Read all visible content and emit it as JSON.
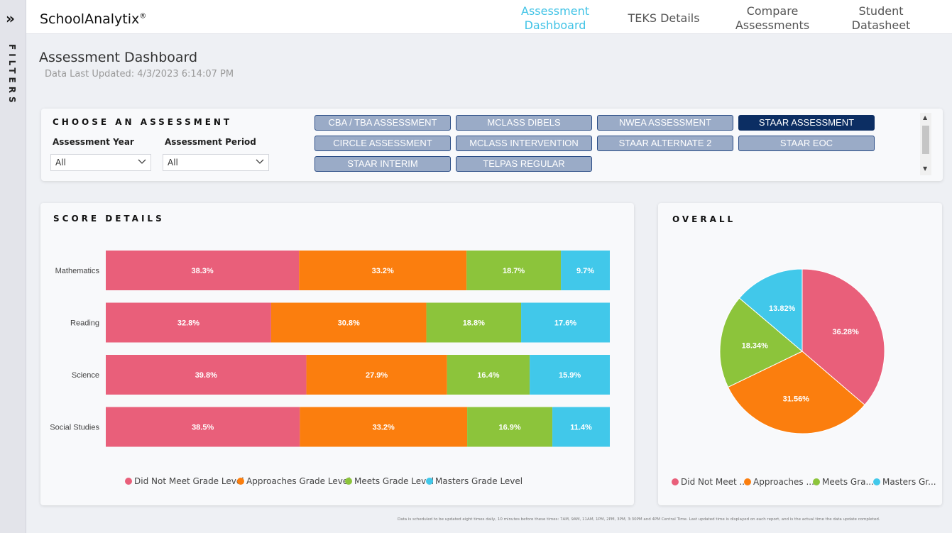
{
  "rail": {
    "toggle": "»",
    "label": "FILTERS"
  },
  "header": {
    "brand": "SchoolAnalytix",
    "brand_mark": "®",
    "nav": [
      {
        "line1": "Assessment",
        "line2": "Dashboard"
      },
      {
        "line1": "TEKS Details",
        "line2": ""
      },
      {
        "line1": "Compare",
        "line2": "Assessments"
      },
      {
        "line1": "Student",
        "line2": "Datasheet"
      }
    ],
    "active_nav": 0
  },
  "page": {
    "title": "Assessment Dashboard",
    "last_updated": "Data Last Updated: 4/3/2023 6:14:07 PM"
  },
  "choose": {
    "title": "CHOOSE AN ASSESSMENT",
    "year_label": "Assessment Year",
    "year_value": "All",
    "period_label": "Assessment Period",
    "period_value": "All",
    "assessments": [
      "CBA / TBA ASSESSMENT",
      "MCLASS DIBELS",
      "NWEA ASSESSMENT",
      "STAAR ASSESSMENT",
      "CIRCLE ASSESSMENT",
      "MCLASS INTERVENTION",
      "STAAR ALTERNATE 2",
      "STAAR EOC",
      "STAAR INTERIM",
      "TELPAS REGULAR"
    ],
    "selected": "STAAR ASSESSMENT"
  },
  "colors": {
    "did_not_meet": "#e95f7a",
    "approaches": "#fb7e0e",
    "meets": "#8cc43b",
    "masters": "#41c8ea"
  },
  "score_details": {
    "title": "SCORE DETAILS"
  },
  "overall": {
    "title": "OVERALL"
  },
  "chart_data": [
    {
      "type": "bar",
      "stacked": true,
      "orientation": "horizontal",
      "normalized_percent": true,
      "title": "SCORE DETAILS",
      "categories": [
        "Mathematics",
        "Reading",
        "Science",
        "Social Studies"
      ],
      "series": [
        {
          "name": "Did Not Meet Grade Level",
          "values": [
            38.3,
            32.8,
            39.8,
            38.5
          ],
          "labels": [
            "38.3%",
            "32.8%",
            "39.8%",
            "38.5%"
          ]
        },
        {
          "name": "Approaches Grade Level",
          "values": [
            33.2,
            30.8,
            27.9,
            33.2
          ],
          "labels": [
            "33.2%",
            "30.8%",
            "27.9%",
            "33.2%"
          ]
        },
        {
          "name": "Meets Grade Level",
          "values": [
            18.7,
            18.8,
            16.4,
            16.9
          ],
          "labels": [
            "18.7%",
            "18.8%",
            "16.4%",
            "16.9%"
          ]
        },
        {
          "name": "Masters Grade Level",
          "values": [
            9.7,
            17.6,
            15.9,
            11.4
          ],
          "labels": [
            "9.7%",
            "17.6%",
            "15.9%",
            "11.4%"
          ]
        }
      ],
      "legend": "bottom"
    },
    {
      "type": "pie",
      "title": "OVERALL",
      "slices": [
        {
          "name": "Did Not Meet ...",
          "value": 36.28,
          "label": "36.28%"
        },
        {
          "name": "Approaches ...",
          "value": 31.56,
          "label": "31.56%"
        },
        {
          "name": "Meets Gra...",
          "value": 18.34,
          "label": "18.34%"
        },
        {
          "name": "Masters Gr...",
          "value": 13.82,
          "label": "13.82%"
        }
      ],
      "legend": "bottom"
    }
  ],
  "footnote": "Data is scheduled to be updated eight times daily, 10 minutes before these times: 7AM, 9AM, 11AM, 1PM, 2PM, 3PM, 3:30PM and 4PM Central Time. Last updated time is displayed on each report, and is the actual time the data update completed."
}
